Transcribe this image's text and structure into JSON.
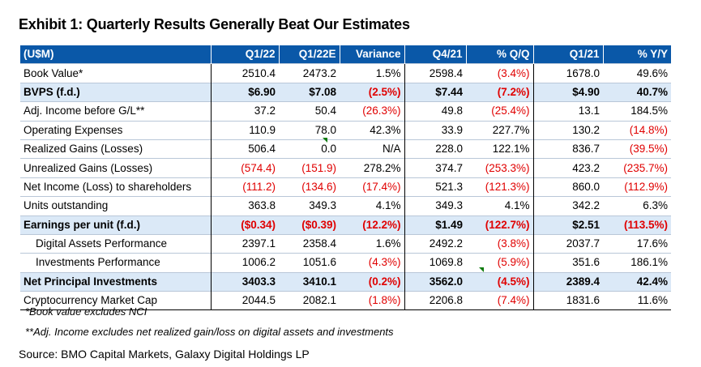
{
  "title": "Exhibit 1:  Quarterly Results Generally Beat Our Estimates",
  "columns": [
    "(U$M)",
    "Q1/22",
    "Q1/22E",
    "Variance",
    "Q4/21",
    "% Q/Q",
    "Q1/21",
    "% Y/Y"
  ],
  "rows": [
    {
      "cells": [
        "Book Value*",
        "2510.4",
        "2473.2",
        "1.5%",
        "2598.4",
        "(3.4%)",
        "1678.0",
        "49.6%"
      ]
    },
    {
      "cells": [
        "BVPS (f.d.)",
        "$6.90",
        "$7.08",
        "(2.5%)",
        "$7.44",
        "(7.2%)",
        "$4.90",
        "40.7%"
      ]
    },
    {
      "cells": [
        "Adj. Income before G/L**",
        "37.2",
        "50.4",
        "(26.3%)",
        "49.8",
        "(25.4%)",
        "13.1",
        "184.5%"
      ]
    },
    {
      "cells": [
        "Operating Expenses",
        "110.9",
        "78.0",
        "42.3%",
        "33.9",
        "227.7%",
        "130.2",
        "(14.8%)"
      ]
    },
    {
      "cells": [
        "Realized Gains (Losses)",
        "506.4",
        "0.0",
        "N/A",
        "228.0",
        "122.1%",
        "836.7",
        "(39.5%)"
      ]
    },
    {
      "cells": [
        "Unrealized Gains (Losses)",
        "(574.4)",
        "(151.9)",
        "278.2%",
        "374.7",
        "(253.3%)",
        "423.2",
        "(235.7%)"
      ]
    },
    {
      "cells": [
        "Net Income (Loss) to shareholders",
        "(111.2)",
        "(134.6)",
        "(17.4%)",
        "521.3",
        "(121.3%)",
        "860.0",
        "(112.9%)"
      ]
    },
    {
      "cells": [
        "Units outstanding",
        "363.8",
        "349.3",
        "4.1%",
        "349.3",
        "4.1%",
        "342.2",
        "6.3%"
      ]
    },
    {
      "cells": [
        "Earnings per unit (f.d.)",
        "($0.34)",
        "($0.39)",
        "(12.2%)",
        "$1.49",
        "(122.7%)",
        "$2.51",
        "(113.5%)"
      ]
    },
    {
      "cells": [
        "Digital Assets Performance",
        "2397.1",
        "2358.4",
        "1.6%",
        "2492.2",
        "(3.8%)",
        "2037.7",
        "17.6%"
      ]
    },
    {
      "cells": [
        "Investments Performance",
        "1006.2",
        "1051.6",
        "(4.3%)",
        "1069.8",
        "(5.9%)",
        "351.6",
        "186.1%"
      ]
    },
    {
      "cells": [
        "Net Principal Investments",
        "3403.3",
        "3410.1",
        "(0.2%)",
        "3562.0",
        "(4.5%)",
        "2389.4",
        "42.4%"
      ]
    },
    {
      "cells": [
        "Cryptocurrency Market Cap",
        "2044.5",
        "2082.1",
        "(1.8%)",
        "2206.8",
        "(7.4%)",
        "1831.6",
        "11.6%"
      ]
    }
  ],
  "notes": [
    "*Book value excludes NCI",
    "**Adj. Income excludes net realized gain/loss on digital assets and investments"
  ],
  "source": "Source: BMO Capital Markets, Galaxy Digital Holdings LP",
  "colors": {
    "header": "#0a58a8",
    "highlight": "#dbe9f7",
    "negative": "#e00000"
  }
}
